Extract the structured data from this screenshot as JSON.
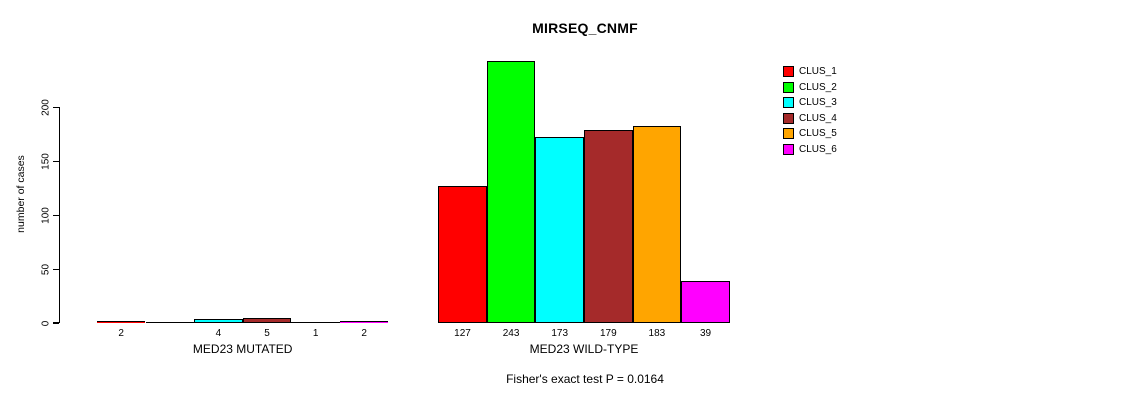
{
  "title": "MIRSEQ_CNMF",
  "chart_data": {
    "type": "bar",
    "title": "MIRSEQ_CNMF",
    "xlabel": "",
    "ylabel": "number of cases",
    "yticks": [
      0,
      50,
      100,
      150,
      200
    ],
    "ylim": [
      0,
      243
    ],
    "grid": false,
    "legend_position": "right",
    "clusters": [
      "CLUS_1",
      "CLUS_2",
      "CLUS_3",
      "CLUS_4",
      "CLUS_5",
      "CLUS_6"
    ],
    "colors": [
      "#FF0000",
      "#00FF00",
      "#00FFFF",
      "#A52A2A",
      "#FFA500",
      "#FF00FF"
    ],
    "groups": [
      {
        "label": "MED23 MUTATED",
        "values": [
          2,
          0,
          4,
          5,
          1,
          2
        ],
        "bar_labels": [
          "2",
          "",
          "4",
          "5",
          "1",
          "2"
        ]
      },
      {
        "label": "MED23 WILD-TYPE",
        "values": [
          127,
          243,
          173,
          179,
          183,
          39
        ],
        "bar_labels": [
          "127",
          "243",
          "173",
          "179",
          "183",
          "39"
        ]
      }
    ],
    "legend": {
      "entries": [
        {
          "label": "CLUS_1",
          "color": "#FF0000"
        },
        {
          "label": "CLUS_2",
          "color": "#00FF00"
        },
        {
          "label": "CLUS_3",
          "color": "#00FFFF"
        },
        {
          "label": "CLUS_4",
          "color": "#A52A2A"
        },
        {
          "label": "CLUS_5",
          "color": "#FFA500"
        },
        {
          "label": "CLUS_6",
          "color": "#FF00FF"
        }
      ]
    },
    "annotation": "Fisher's exact test P = 0.0164"
  }
}
